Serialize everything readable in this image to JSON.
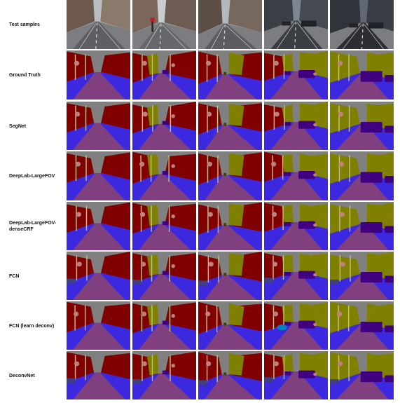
{
  "rows": [
    {
      "label": "Test samples",
      "kind": "photo"
    },
    {
      "label": "Ground Truth",
      "kind": "seg"
    },
    {
      "label": "SegNet",
      "kind": "seg"
    },
    {
      "label": "DeepLab-LargeFOV",
      "kind": "seg"
    },
    {
      "label": "DeepLab-LargeFOV-denseCRF",
      "kind": "seg"
    },
    {
      "label": "FCN",
      "kind": "seg"
    },
    {
      "label": "FCN (learn deconv)",
      "kind": "seg"
    },
    {
      "label": "DeconvNet",
      "kind": "seg"
    }
  ],
  "columns": 5,
  "colors": {
    "sky": "#808080",
    "building": "#800000",
    "tree": "#808000",
    "road": "#804080",
    "pavement": "#3c28de",
    "car": "#400080",
    "pole": "#c0c080",
    "sign": "#c08080",
    "pedestrian": "#404000",
    "cyclist": "#0080c0",
    "fence": "#404080"
  }
}
